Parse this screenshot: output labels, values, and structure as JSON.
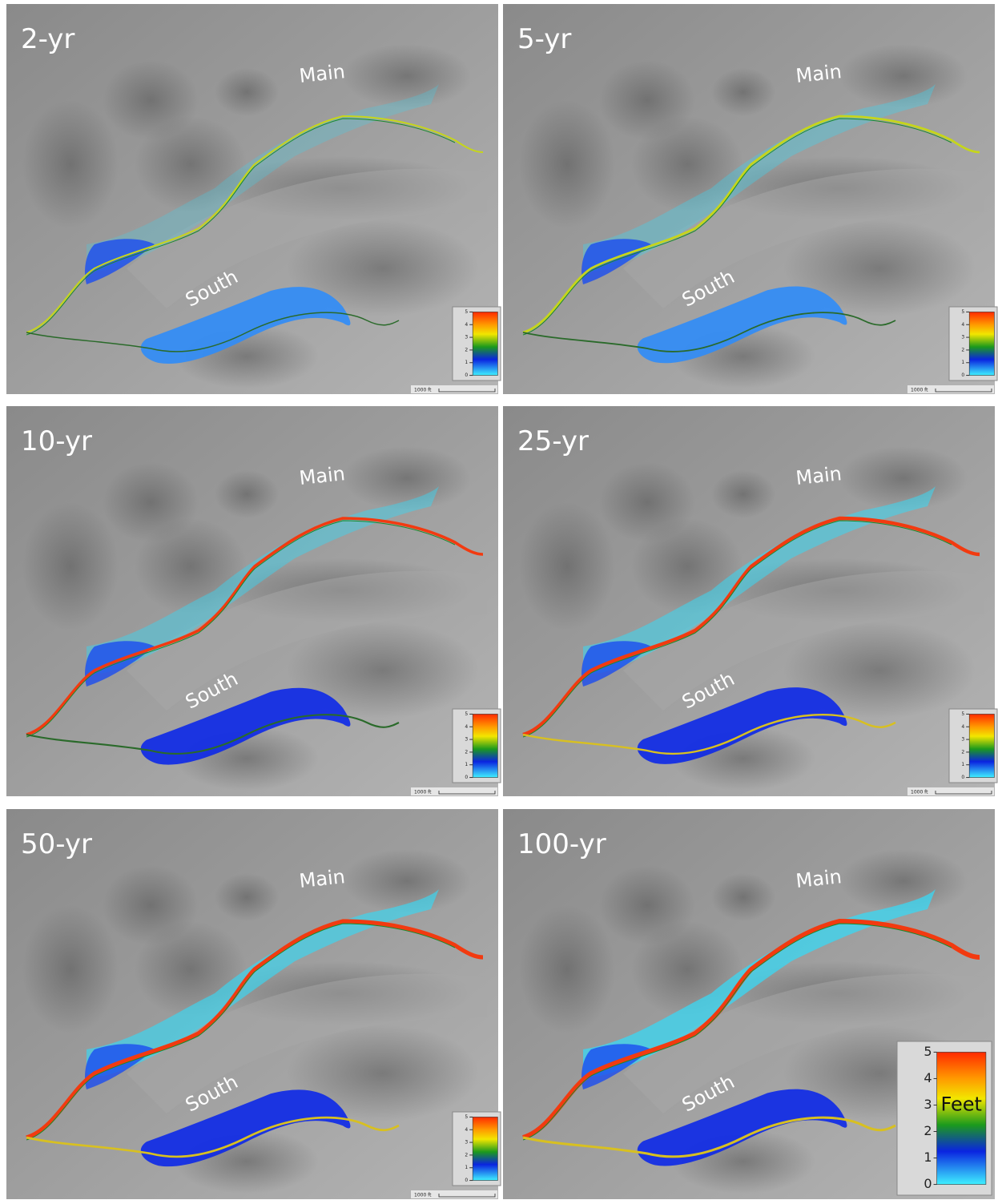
{
  "panels": [
    {
      "title": "2-yr",
      "labels": [
        "Main",
        "South"
      ],
      "legend": {
        "ticks": [
          0,
          1,
          2,
          3,
          4,
          5
        ]
      },
      "scale_bar": "1000 ft"
    },
    {
      "title": "5-yr",
      "labels": [
        "Main",
        "South"
      ],
      "legend": {
        "ticks": [
          0,
          1,
          2,
          3,
          4,
          5
        ]
      },
      "scale_bar": "1000 ft"
    },
    {
      "title": "10-yr",
      "labels": [
        "Main",
        "South"
      ],
      "legend": {
        "ticks": [
          0,
          1,
          2,
          3,
          4,
          5
        ]
      },
      "scale_bar": "1000 ft"
    },
    {
      "title": "25-yr",
      "labels": [
        "Main",
        "South"
      ],
      "legend": {
        "ticks": [
          0,
          1,
          2,
          3,
          4,
          5
        ]
      },
      "scale_bar": "1000 ft"
    },
    {
      "title": "50-yr",
      "labels": [
        "Main",
        "South"
      ],
      "legend": {
        "ticks": [
          0,
          1,
          2,
          3,
          4,
          5
        ]
      },
      "scale_bar": "1000 ft"
    },
    {
      "title": "100-yr",
      "labels": [
        "Main",
        "South"
      ],
      "legend": {
        "ticks": [
          0,
          1,
          2,
          3,
          4,
          5
        ],
        "unit": "Feet"
      }
    }
  ]
}
